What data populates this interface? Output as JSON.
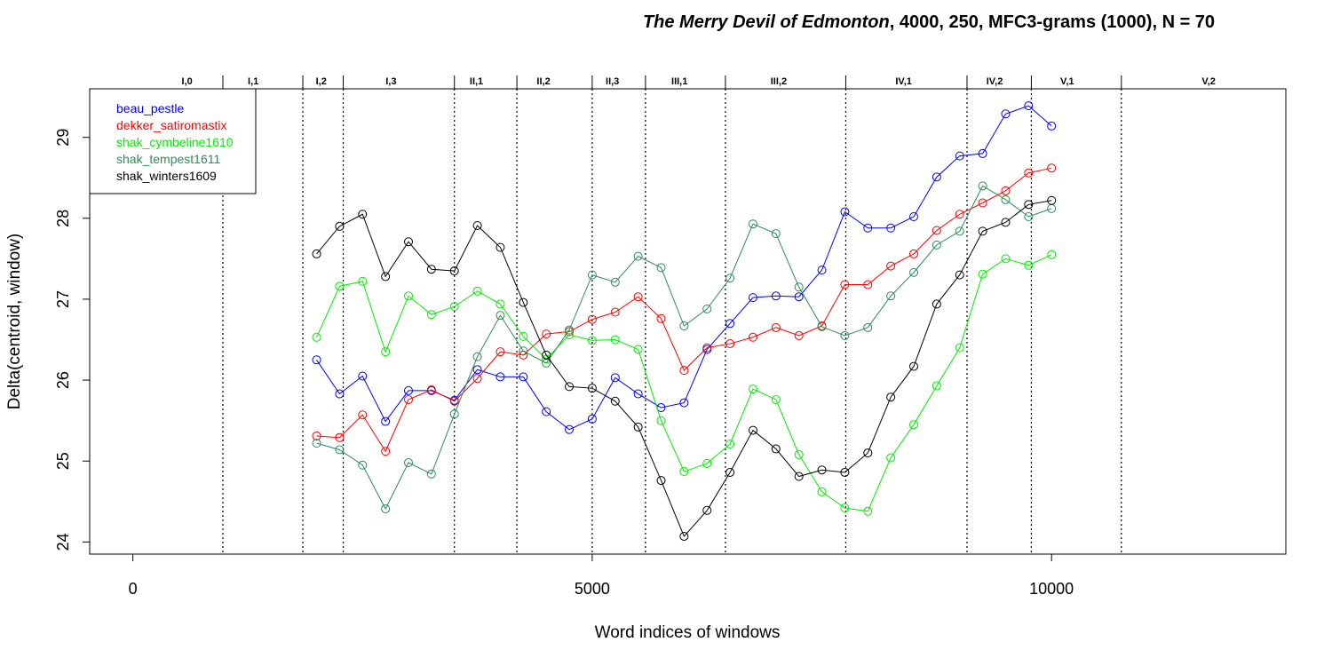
{
  "chart_data": {
    "type": "line",
    "title_italic": "The Merry Devil of Edmonton",
    "title_rest": ", 4000, 250, MFC3-grams (1000), N = 70",
    "xlabel": "Word indices of windows",
    "ylabel": "Delta(centroid, window)",
    "xlim": [
      -470,
      12550
    ],
    "ylim": [
      23.85,
      29.6
    ],
    "xticks": [
      0,
      5000,
      10000
    ],
    "xtick_labels": [
      "0",
      "5000",
      "10000"
    ],
    "yticks": [
      24,
      25,
      26,
      27,
      28,
      29
    ],
    "ytick_labels": [
      "24",
      "25",
      "26",
      "27",
      "28",
      "29"
    ],
    "legend_position": "top-left",
    "x": [
      2000,
      2250,
      2500,
      2750,
      3000,
      3250,
      3500,
      3750,
      4000,
      4250,
      4500,
      4750,
      5000,
      5250,
      5500,
      5750,
      6000,
      6250,
      6500,
      6750,
      7000,
      7250,
      7500,
      7750,
      8000,
      8250,
      8500,
      8750,
      9000,
      9250,
      9500,
      9750,
      10000
    ],
    "series": [
      {
        "name": "beau_pestle",
        "color": "#0000ff",
        "values": [
          26.25,
          25.83,
          26.05,
          25.49,
          25.87,
          25.87,
          25.75,
          26.13,
          26.04,
          26.04,
          25.61,
          25.39,
          25.52,
          26.03,
          25.83,
          25.66,
          25.72,
          26.38,
          26.7,
          27.02,
          27.04,
          27.03,
          27.36,
          28.08,
          27.88,
          27.88,
          28.02,
          28.51,
          28.77,
          28.8,
          29.29,
          29.39,
          29.14
        ]
      },
      {
        "name": "dekker_satiromastix",
        "color": "#ff0000",
        "values": [
          25.31,
          25.29,
          25.57,
          25.12,
          25.76,
          25.88,
          25.74,
          26.02,
          26.35,
          26.31,
          26.57,
          26.6,
          26.75,
          26.84,
          27.03,
          26.76,
          26.12,
          26.4,
          26.45,
          26.53,
          26.65,
          26.55,
          26.67,
          27.18,
          27.18,
          27.41,
          27.56,
          27.85,
          28.05,
          28.19,
          28.34,
          28.56,
          28.62
        ]
      },
      {
        "name": "shak_cymbeline1610",
        "color": "#00ee00",
        "values": [
          26.53,
          27.16,
          27.22,
          26.35,
          27.04,
          26.81,
          26.91,
          27.1,
          26.94,
          26.54,
          26.26,
          26.56,
          26.49,
          26.5,
          26.38,
          25.5,
          24.87,
          24.97,
          25.21,
          25.89,
          25.76,
          25.08,
          24.62,
          24.42,
          24.38,
          25.04,
          25.45,
          25.93,
          26.4,
          27.31,
          27.5,
          27.42,
          27.55
        ]
      },
      {
        "name": "shak_tempest1611",
        "color": "#2e8b57",
        "values": [
          25.22,
          25.14,
          24.95,
          24.41,
          24.98,
          24.84,
          25.58,
          26.29,
          26.8,
          26.36,
          26.21,
          26.62,
          27.3,
          27.21,
          27.53,
          27.39,
          26.67,
          26.88,
          27.26,
          27.93,
          27.81,
          27.15,
          26.66,
          26.55,
          26.65,
          27.04,
          27.33,
          27.67,
          27.84,
          28.4,
          28.23,
          28.02,
          28.12
        ]
      },
      {
        "name": "shak_winters1609",
        "color": "#000000",
        "values": [
          27.56,
          27.9,
          28.05,
          27.28,
          27.71,
          27.37,
          27.35,
          27.91,
          27.64,
          26.96,
          26.31,
          25.92,
          25.9,
          25.74,
          25.42,
          24.76,
          24.07,
          24.39,
          24.86,
          25.38,
          25.15,
          24.81,
          24.89,
          24.86,
          25.1,
          25.79,
          26.17,
          26.94,
          27.3,
          27.84,
          27.95,
          28.17,
          28.22
        ]
      }
    ],
    "act_boundaries": [
      980,
      1850,
      2290,
      3500,
      4180,
      5000,
      5580,
      6450,
      7760,
      9080,
      9780,
      10760
    ],
    "act_labels": [
      {
        "label": "I,0",
        "x": 590
      },
      {
        "label": "I,1",
        "x": 1310
      },
      {
        "label": "I,2",
        "x": 2050
      },
      {
        "label": "I,3",
        "x": 2810
      },
      {
        "label": "II,1",
        "x": 3740
      },
      {
        "label": "II,2",
        "x": 4470
      },
      {
        "label": "II,3",
        "x": 5220
      },
      {
        "label": "III,1",
        "x": 5950
      },
      {
        "label": "III,2",
        "x": 7030
      },
      {
        "label": "IV,1",
        "x": 8390
      },
      {
        "label": "IV,2",
        "x": 9380
      },
      {
        "label": "V,1",
        "x": 10170
      },
      {
        "label": "V,2",
        "x": 11710
      }
    ]
  }
}
